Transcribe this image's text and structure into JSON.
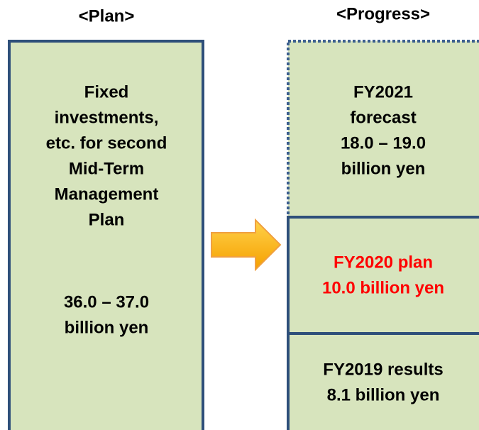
{
  "plan": {
    "heading": "<Plan>",
    "description": [
      "Fixed",
      "investments,",
      "etc. for second",
      "Mid-Term",
      "Management",
      "Plan"
    ],
    "amount": [
      "36.0 – 37.0",
      "billion yen"
    ]
  },
  "progress": {
    "heading": "<Progress>",
    "fy2021": [
      "FY2021",
      "forecast",
      "18.0 – 19.0",
      "billion yen"
    ],
    "fy2020": [
      "FY2020 plan",
      "10.0 billion yen"
    ],
    "fy2019": [
      "FY2019 results",
      "8.1 billion yen"
    ]
  }
}
